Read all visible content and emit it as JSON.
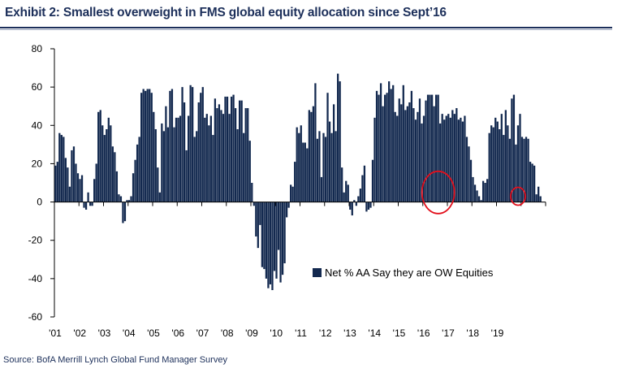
{
  "header": {
    "title": "Exhibit 2: Smallest overweight in FMS global equity allocation since Sept’16"
  },
  "footer": {
    "source": "Source:  BofA Merrill Lynch Global Fund Manager Survey"
  },
  "colors": {
    "bar": "#13294f",
    "highlight_circle": "#e3101c",
    "title": "#1c2f5a"
  },
  "chart_data": {
    "type": "bar",
    "series": [
      {
        "name": "Net % AA Say they are OW Equities",
        "values": [
          19,
          21,
          36,
          35,
          34,
          23,
          18,
          8,
          27,
          29,
          20,
          15,
          12,
          14,
          -3,
          -4,
          5,
          -2,
          -2,
          12,
          20,
          47,
          48,
          40,
          35,
          38,
          44,
          40,
          29,
          26,
          16,
          4,
          3,
          -11,
          -10,
          1,
          1,
          3,
          15,
          22,
          30,
          34,
          57,
          59,
          58,
          59,
          59,
          57,
          47,
          38,
          18,
          5,
          41,
          37,
          50,
          39,
          58,
          59,
          39,
          44,
          44,
          45,
          60,
          52,
          27,
          45,
          61,
          60,
          34,
          37,
          52,
          57,
          60,
          44,
          46,
          40,
          45,
          35,
          54,
          49,
          51,
          48,
          46,
          55,
          55,
          46,
          55,
          56,
          49,
          38,
          53,
          53,
          36,
          49,
          49,
          32,
          10,
          -2,
          -18,
          -24,
          -12,
          -34,
          -35,
          -40,
          -45,
          -43,
          -46,
          -36,
          -40,
          -25,
          -42,
          -38,
          -32,
          -8,
          -3,
          9,
          8,
          21,
          39,
          36,
          40,
          31,
          31,
          28,
          48,
          47,
          50,
          62,
          33,
          37,
          13,
          36,
          34,
          57,
          42,
          36,
          51,
          37,
          67,
          63,
          18,
          5,
          11,
          9,
          -4,
          -7,
          1,
          -2,
          3,
          7,
          14,
          19,
          -5,
          -4,
          -3,
          22,
          44,
          58,
          56,
          62,
          50,
          56,
          57,
          63,
          59,
          61,
          47,
          45,
          54,
          51,
          61,
          48,
          50,
          52,
          58,
          49,
          43,
          47,
          54,
          41,
          45,
          53,
          56,
          56,
          56,
          50,
          56,
          56,
          41,
          46,
          43,
          45,
          46,
          44,
          48,
          46,
          49,
          43,
          44,
          42,
          45,
          34,
          29,
          22,
          13,
          9,
          6,
          3,
          1,
          11,
          10,
          12,
          36,
          40,
          39,
          44,
          42,
          38,
          46,
          35,
          48,
          40,
          33,
          54,
          56,
          30,
          40,
          46,
          34,
          33,
          34,
          33,
          21,
          20,
          19,
          4,
          8,
          3,
          0,
          0
        ]
      }
    ],
    "x_tick_labels": [
      "'01",
      "'02",
      "'03",
      "'04",
      "'05",
      "'06",
      "'07",
      "'08",
      "'09",
      "'10",
      "'11",
      "'12",
      "'13",
      "'14",
      "'15",
      "'16",
      "'17",
      "'18",
      "'19"
    ],
    "y_tick_labels": [
      "80",
      "60",
      "40",
      "20",
      "0",
      "-20",
      "-40",
      "-60"
    ],
    "ylim": [
      -60,
      80
    ],
    "y_ticks": [
      80,
      60,
      40,
      20,
      0,
      -20,
      -40,
      -60
    ],
    "legend_position": "center-right",
    "grid": false
  }
}
